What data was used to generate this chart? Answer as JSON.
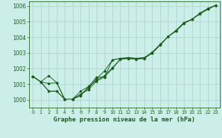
{
  "background_color": "#cceee8",
  "grid_color": "#aad4ce",
  "line_color": "#1a5c1a",
  "marker_color": "#1a5c1a",
  "title": "Graphe pression niveau de la mer (hPa)",
  "xlim": [
    -0.5,
    23.5
  ],
  "ylim": [
    999.5,
    1006.3
  ],
  "yticks": [
    1000,
    1001,
    1002,
    1003,
    1004,
    1005,
    1006
  ],
  "xticks": [
    0,
    1,
    2,
    3,
    4,
    5,
    6,
    7,
    8,
    9,
    10,
    11,
    12,
    13,
    14,
    15,
    16,
    17,
    18,
    19,
    20,
    21,
    22,
    23
  ],
  "series1_x": [
    0,
    1,
    2,
    3,
    4,
    5,
    6,
    7,
    8,
    9,
    10,
    11,
    12,
    13,
    14,
    15,
    16,
    17,
    18,
    19,
    20,
    21,
    22,
    23
  ],
  "series1_y": [
    1001.5,
    1001.15,
    1001.55,
    1001.1,
    1000.05,
    1000.05,
    1000.35,
    1000.65,
    1001.2,
    1001.45,
    1002.0,
    1002.6,
    1002.65,
    1002.6,
    1002.65,
    1003.0,
    1003.5,
    1004.05,
    1004.4,
    1004.9,
    1005.15,
    1005.5,
    1005.8,
    1006.05
  ],
  "series2_x": [
    0,
    1,
    2,
    3,
    4,
    5,
    6,
    7,
    8,
    9,
    10,
    11,
    12,
    13,
    14,
    15,
    16,
    17,
    18,
    19,
    20,
    21,
    22,
    23
  ],
  "series2_y": [
    1001.5,
    1001.15,
    1001.05,
    1001.1,
    1000.05,
    1000.05,
    1000.25,
    1000.85,
    1001.25,
    1001.55,
    1002.05,
    1002.6,
    1002.65,
    1002.6,
    1002.65,
    1003.0,
    1003.5,
    1004.05,
    1004.4,
    1004.9,
    1005.15,
    1005.5,
    1005.8,
    1006.05
  ],
  "series3_x": [
    0,
    1,
    2,
    3,
    4,
    5,
    6,
    7,
    8,
    9,
    10,
    11,
    12,
    13,
    14,
    15,
    16,
    17,
    18,
    19,
    20,
    21,
    22,
    23
  ],
  "series3_y": [
    1001.5,
    1001.15,
    1000.55,
    1000.55,
    1000.05,
    1000.05,
    1000.35,
    1000.75,
    1001.35,
    1001.85,
    1002.55,
    1002.65,
    1002.7,
    1002.65,
    1002.7,
    1003.05,
    1003.55,
    1004.05,
    1004.45,
    1004.95,
    1005.15,
    1005.55,
    1005.85,
    1006.05
  ],
  "series4_x": [
    0,
    1,
    2,
    3,
    4,
    5,
    6,
    7,
    8,
    9,
    10,
    11,
    12,
    13,
    14
  ],
  "series4_y": [
    1001.5,
    1001.15,
    1000.55,
    1000.55,
    1000.05,
    1000.05,
    1000.55,
    1000.85,
    1001.45,
    1001.45,
    1002.55,
    1002.65,
    1002.7,
    1002.65,
    1002.7
  ],
  "ytick_fontsize": 5.5,
  "xtick_fontsize": 4.8,
  "title_fontsize": 6.5
}
